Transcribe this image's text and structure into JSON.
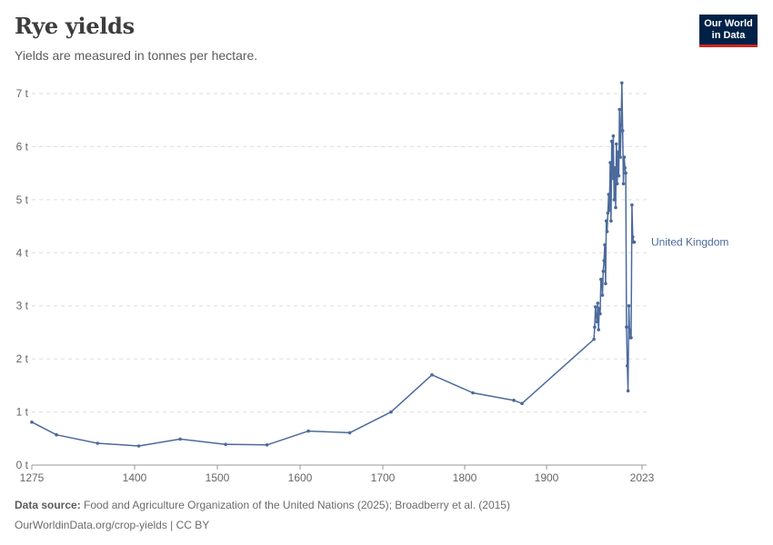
{
  "header": {
    "title": "Rye yields",
    "subtitle": "Yields are measured in tonnes per hectare.",
    "logo_line1": "Our World",
    "logo_line2": "in Data"
  },
  "footer": {
    "source_label": "Data source:",
    "source_text": "Food and Agriculture Organization of the United Nations (2025); Broadberry et al. (2015)",
    "url_text": "OurWorldinData.org/crop-yields | CC BY"
  },
  "colors": {
    "series": "#4c6a9c",
    "grid": "#dddddd",
    "text": "#5b5b5b",
    "logo_bg": "#002147",
    "logo_accent": "#ce261e"
  },
  "chart_data": {
    "type": "line",
    "title": "Rye yields",
    "subtitle": "Yields are measured in tonnes per hectare.",
    "xlim": [
      1275,
      2023
    ],
    "ylim": [
      0,
      7
    ],
    "x_ticks": [
      "1275",
      "1400",
      "1500",
      "1600",
      "1700",
      "1800",
      "1900",
      "2023"
    ],
    "y_ticks": [
      "0 t",
      "1 t",
      "2 t",
      "3 t",
      "4 t",
      "5 t",
      "6 t",
      "7 t"
    ],
    "grid": true,
    "series": [
      {
        "name": "United Kingdom",
        "points": [
          [
            1275,
            0.81
          ],
          [
            1305,
            0.57
          ],
          [
            1355,
            0.41
          ],
          [
            1405,
            0.36
          ],
          [
            1455,
            0.49
          ],
          [
            1510,
            0.39
          ],
          [
            1560,
            0.38
          ],
          [
            1610,
            0.64
          ],
          [
            1660,
            0.61
          ],
          [
            1710,
            1.0
          ],
          [
            1760,
            1.7
          ],
          [
            1810,
            1.36
          ],
          [
            1860,
            1.22
          ],
          [
            1870,
            1.16
          ],
          [
            1961,
            2.37
          ],
          [
            1962,
            2.6
          ],
          [
            1963,
            2.98
          ],
          [
            1964,
            2.8
          ],
          [
            1965,
            2.7
          ],
          [
            1966,
            3.05
          ],
          [
            1967,
            2.55
          ],
          [
            1968,
            2.95
          ],
          [
            1969,
            2.85
          ],
          [
            1970,
            3.5
          ],
          [
            1971,
            3.5
          ],
          [
            1972,
            3.2
          ],
          [
            1973,
            3.65
          ],
          [
            1974,
            3.85
          ],
          [
            1975,
            4.15
          ],
          [
            1976,
            3.42
          ],
          [
            1977,
            4.6
          ],
          [
            1978,
            4.4
          ],
          [
            1979,
            4.75
          ],
          [
            1980,
            5.1
          ],
          [
            1981,
            4.8
          ],
          [
            1982,
            5.7
          ],
          [
            1983,
            4.6
          ],
          [
            1984,
            6.1
          ],
          [
            1985,
            5.4
          ],
          [
            1986,
            6.2
          ],
          [
            1987,
            5.0
          ],
          [
            1988,
            5.6
          ],
          [
            1989,
            4.85
          ],
          [
            1990,
            6.05
          ],
          [
            1991,
            5.3
          ],
          [
            1992,
            5.9
          ],
          [
            1993,
            5.45
          ],
          [
            1994,
            6.7
          ],
          [
            1995,
            5.8
          ],
          [
            1996,
            6.4
          ],
          [
            1997,
            7.2
          ],
          [
            1998,
            6.3
          ],
          [
            1999,
            5.3
          ],
          [
            2000,
            5.8
          ],
          [
            2001,
            5.6
          ],
          [
            2002,
            5.5
          ],
          [
            2003,
            2.6
          ],
          [
            2004,
            1.87
          ],
          [
            2005,
            1.4
          ],
          [
            2006,
            3.0
          ],
          [
            2007,
            2.55
          ],
          [
            2008,
            2.4
          ],
          [
            2009,
            2.4
          ],
          [
            2010,
            4.9
          ],
          [
            2011,
            4.3
          ],
          [
            2012,
            4.2
          ],
          [
            2013,
            4.2
          ]
        ]
      }
    ]
  }
}
